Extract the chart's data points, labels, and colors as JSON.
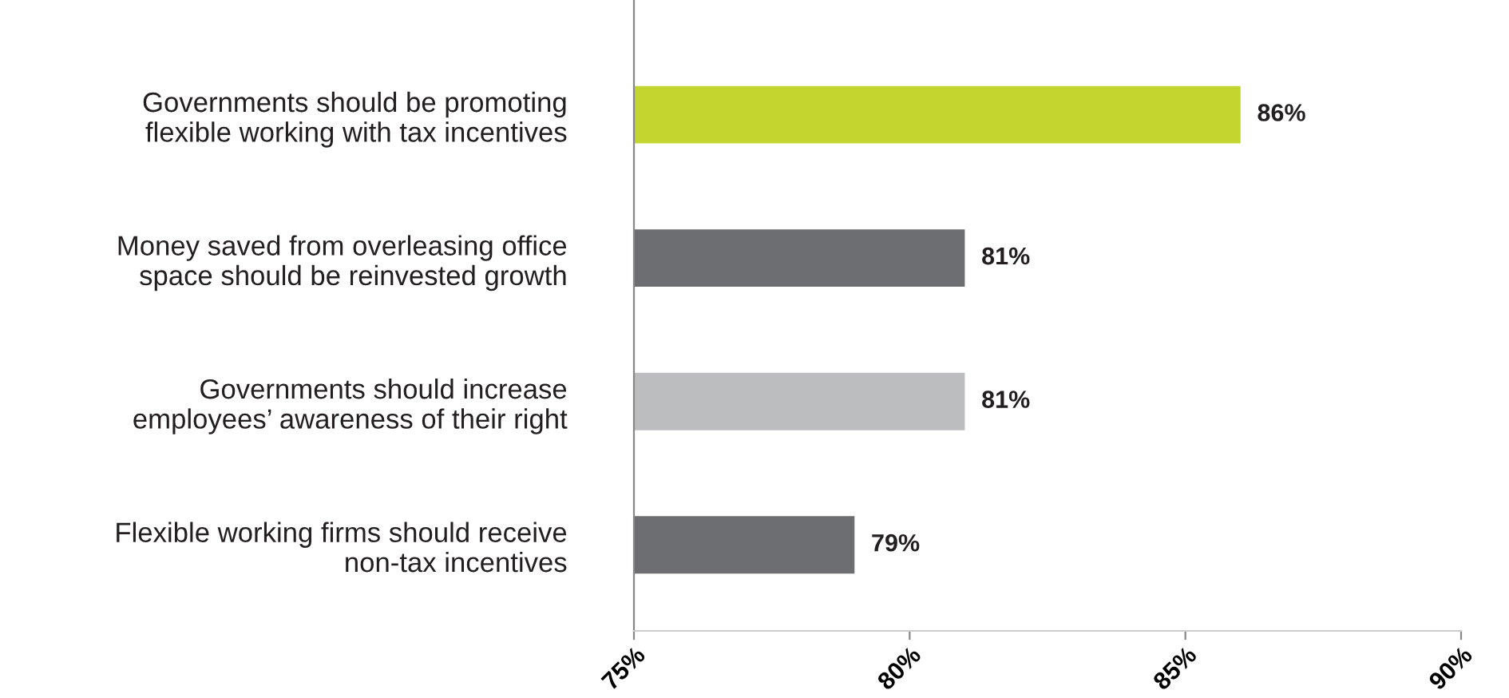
{
  "chart_data": {
    "type": "bar",
    "orientation": "horizontal",
    "categories": [
      "Governments should be promoting\nflexible working with tax incentives",
      "Money saved from overleasing office\nspace should be reinvested growth",
      "Governments should increase\nemployees’ awareness of their right",
      "Flexible working firms should receive\nnon-tax incentives"
    ],
    "values": [
      86,
      81,
      81,
      79
    ],
    "colors": [
      "#c3d52f",
      "#6d6e71",
      "#bcbdbf",
      "#6d6e71"
    ],
    "value_labels": [
      "86%",
      "81%",
      "81%",
      "79%"
    ],
    "xlim": [
      75,
      90
    ],
    "xticks": [
      {
        "value": 75,
        "label": "75%"
      },
      {
        "value": 80,
        "label": "80%"
      },
      {
        "value": 85,
        "label": "85%"
      },
      {
        "value": 90,
        "label": "90%"
      }
    ],
    "grid": false
  }
}
